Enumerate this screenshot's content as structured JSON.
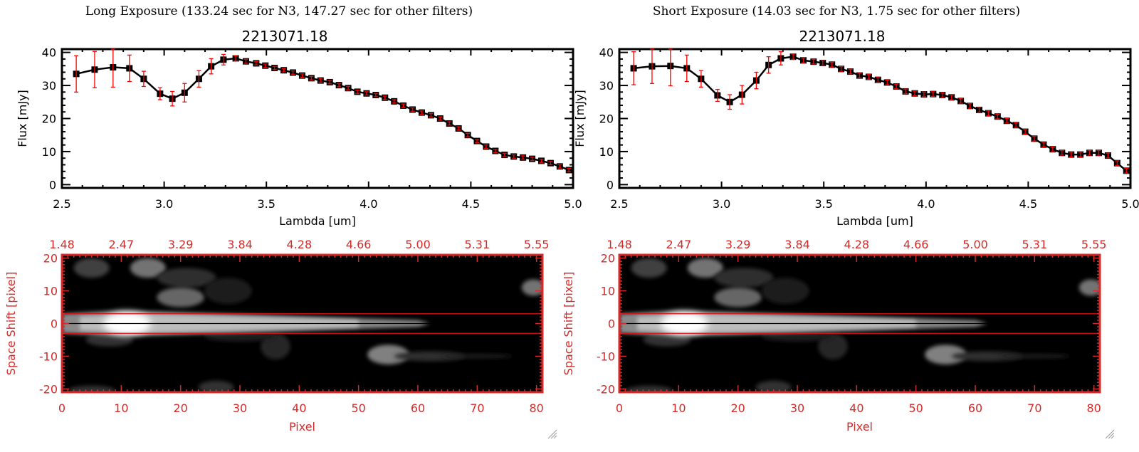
{
  "colors": {
    "axis": "#000000",
    "image_axis": "#d42a2a",
    "errorbar": "#ff0000",
    "marker": "#000000",
    "aperture_line": "#e01010"
  },
  "panels": [
    {
      "title": "Long Exposure (133.24 sec for N3, 147.27 sec for other filters)",
      "chart_data": {
        "type": "line",
        "title": "2213071.18",
        "xlabel": "Lambda [um]",
        "ylabel": "Flux [mJy]",
        "xlim": [
          2.5,
          5.0
        ],
        "ylim": [
          -1,
          41
        ],
        "xticks": [
          "2.5",
          "3.0",
          "3.5",
          "4.0",
          "4.5",
          "5.0"
        ],
        "yticks": [
          "0",
          "10",
          "20",
          "30",
          "40"
        ],
        "x": [
          2.57,
          2.66,
          2.75,
          2.83,
          2.9,
          2.98,
          3.04,
          3.1,
          3.17,
          3.23,
          3.29,
          3.35,
          3.4,
          3.45,
          3.495,
          3.54,
          3.585,
          3.63,
          3.675,
          3.72,
          3.765,
          3.81,
          3.855,
          3.9,
          3.945,
          3.99,
          4.035,
          4.08,
          4.125,
          4.17,
          4.215,
          4.26,
          4.305,
          4.35,
          4.395,
          4.44,
          4.485,
          4.53,
          4.575,
          4.62,
          4.665,
          4.71,
          4.755,
          4.8,
          4.845,
          4.89,
          4.935,
          4.98
        ],
        "y": [
          33.5,
          34.8,
          35.5,
          35.2,
          32,
          27.5,
          26,
          27.8,
          32,
          35.8,
          37.8,
          38.2,
          37.3,
          36.7,
          36.0,
          35.3,
          34.6,
          33.9,
          33.0,
          32.2,
          31.5,
          31.0,
          30.1,
          29.2,
          28.1,
          27.6,
          27.1,
          26.3,
          25.2,
          23.9,
          22.7,
          21.8,
          21.0,
          20.0,
          18.5,
          17.0,
          15.0,
          13.2,
          11.5,
          10.2,
          9.0,
          8.5,
          8.2,
          7.8,
          7.2,
          6.5,
          5.5,
          4.4
        ],
        "yerr": [
          5.5,
          5.5,
          6,
          4,
          2.3,
          1.8,
          2.2,
          2.8,
          2.5,
          2.3,
          1.6,
          0.8,
          0.6,
          0.5,
          0.5,
          0.5,
          0.5,
          0.5,
          0.5,
          0.5,
          0.5,
          0.5,
          0.5,
          0.5,
          0.5,
          0.5,
          0.5,
          0.5,
          0.5,
          0.5,
          0.5,
          0.5,
          0.5,
          0.5,
          0.5,
          0.5,
          0.5,
          0.5,
          0.5,
          0.5,
          0.5,
          0.5,
          0.5,
          0.5,
          0.5,
          0.5,
          0.5,
          0.5
        ]
      },
      "image": {
        "xlabel": "Pixel",
        "ylabel": "Space Shift [pixel]",
        "xlim": [
          0,
          81
        ],
        "ylim": [
          -21,
          21
        ],
        "xticks": [
          "0",
          "10",
          "20",
          "30",
          "40",
          "50",
          "60",
          "70",
          "80"
        ],
        "yticks": [
          "20",
          "10",
          "0",
          "-10",
          "-20"
        ],
        "top_ticks": [
          "1.48",
          "2.47",
          "3.29",
          "3.84",
          "4.28",
          "4.66",
          "5.00",
          "5.31",
          "5.55"
        ],
        "aperture": [
          -3,
          3
        ]
      }
    },
    {
      "title": "Short Exposure (14.03 sec for N3, 1.75 sec for other filters)",
      "chart_data": {
        "type": "line",
        "title": "2213071.18",
        "xlabel": "Lambda [um]",
        "ylabel": "Flux [mJy]",
        "xlim": [
          2.5,
          5.0
        ],
        "ylim": [
          -1,
          41
        ],
        "xticks": [
          "2.5",
          "3.0",
          "3.5",
          "4.0",
          "4.5",
          "5.0"
        ],
        "yticks": [
          "0",
          "10",
          "20",
          "30",
          "40"
        ],
        "x": [
          2.57,
          2.66,
          2.75,
          2.83,
          2.9,
          2.98,
          3.04,
          3.1,
          3.17,
          3.23,
          3.29,
          3.35,
          3.4,
          3.45,
          3.495,
          3.54,
          3.585,
          3.63,
          3.675,
          3.72,
          3.765,
          3.81,
          3.855,
          3.9,
          3.945,
          3.99,
          4.035,
          4.08,
          4.125,
          4.17,
          4.215,
          4.26,
          4.305,
          4.35,
          4.395,
          4.44,
          4.485,
          4.53,
          4.575,
          4.62,
          4.665,
          4.71,
          4.755,
          4.8,
          4.845,
          4.89,
          4.935,
          4.98
        ],
        "y": [
          35.2,
          35.8,
          35.9,
          35.2,
          32,
          27,
          25,
          27.2,
          31.5,
          36.2,
          38.2,
          38.7,
          37.6,
          37.2,
          36.8,
          36.3,
          35.0,
          34.2,
          33.0,
          32.6,
          31.7,
          30.9,
          29.7,
          28.2,
          27.6,
          27.3,
          27.4,
          27.1,
          26.4,
          25.3,
          23.8,
          22.6,
          21.6,
          20.6,
          19.3,
          18.0,
          16.0,
          13.9,
          12.1,
          10.7,
          9.6,
          9.1,
          9.1,
          9.6,
          9.6,
          8.8,
          6.5,
          4.2
        ],
        "yerr": [
          5,
          5.2,
          6,
          4,
          2.5,
          1.8,
          2.2,
          2.8,
          2.5,
          2.5,
          2,
          0.8,
          0.7,
          0.7,
          0.7,
          0.7,
          0.7,
          0.7,
          0.7,
          0.7,
          0.7,
          0.7,
          0.7,
          0.7,
          0.7,
          0.7,
          0.7,
          0.7,
          0.7,
          0.7,
          0.7,
          0.7,
          0.7,
          0.7,
          0.7,
          0.7,
          0.7,
          0.7,
          0.7,
          0.7,
          0.7,
          0.7,
          0.7,
          0.7,
          0.7,
          0.7,
          0.7,
          0.7
        ]
      },
      "image": {
        "xlabel": "Pixel",
        "ylabel": "Space Shift [pixel]",
        "xlim": [
          0,
          81
        ],
        "ylim": [
          -21,
          21
        ],
        "xticks": [
          "0",
          "10",
          "20",
          "30",
          "40",
          "50",
          "60",
          "70",
          "80"
        ],
        "yticks": [
          "20",
          "10",
          "0",
          "-10",
          "-20"
        ],
        "top_ticks": [
          "1.48",
          "2.47",
          "3.29",
          "3.84",
          "4.28",
          "4.66",
          "5.00",
          "5.31",
          "5.55"
        ],
        "aperture": [
          -3,
          3
        ]
      }
    }
  ]
}
